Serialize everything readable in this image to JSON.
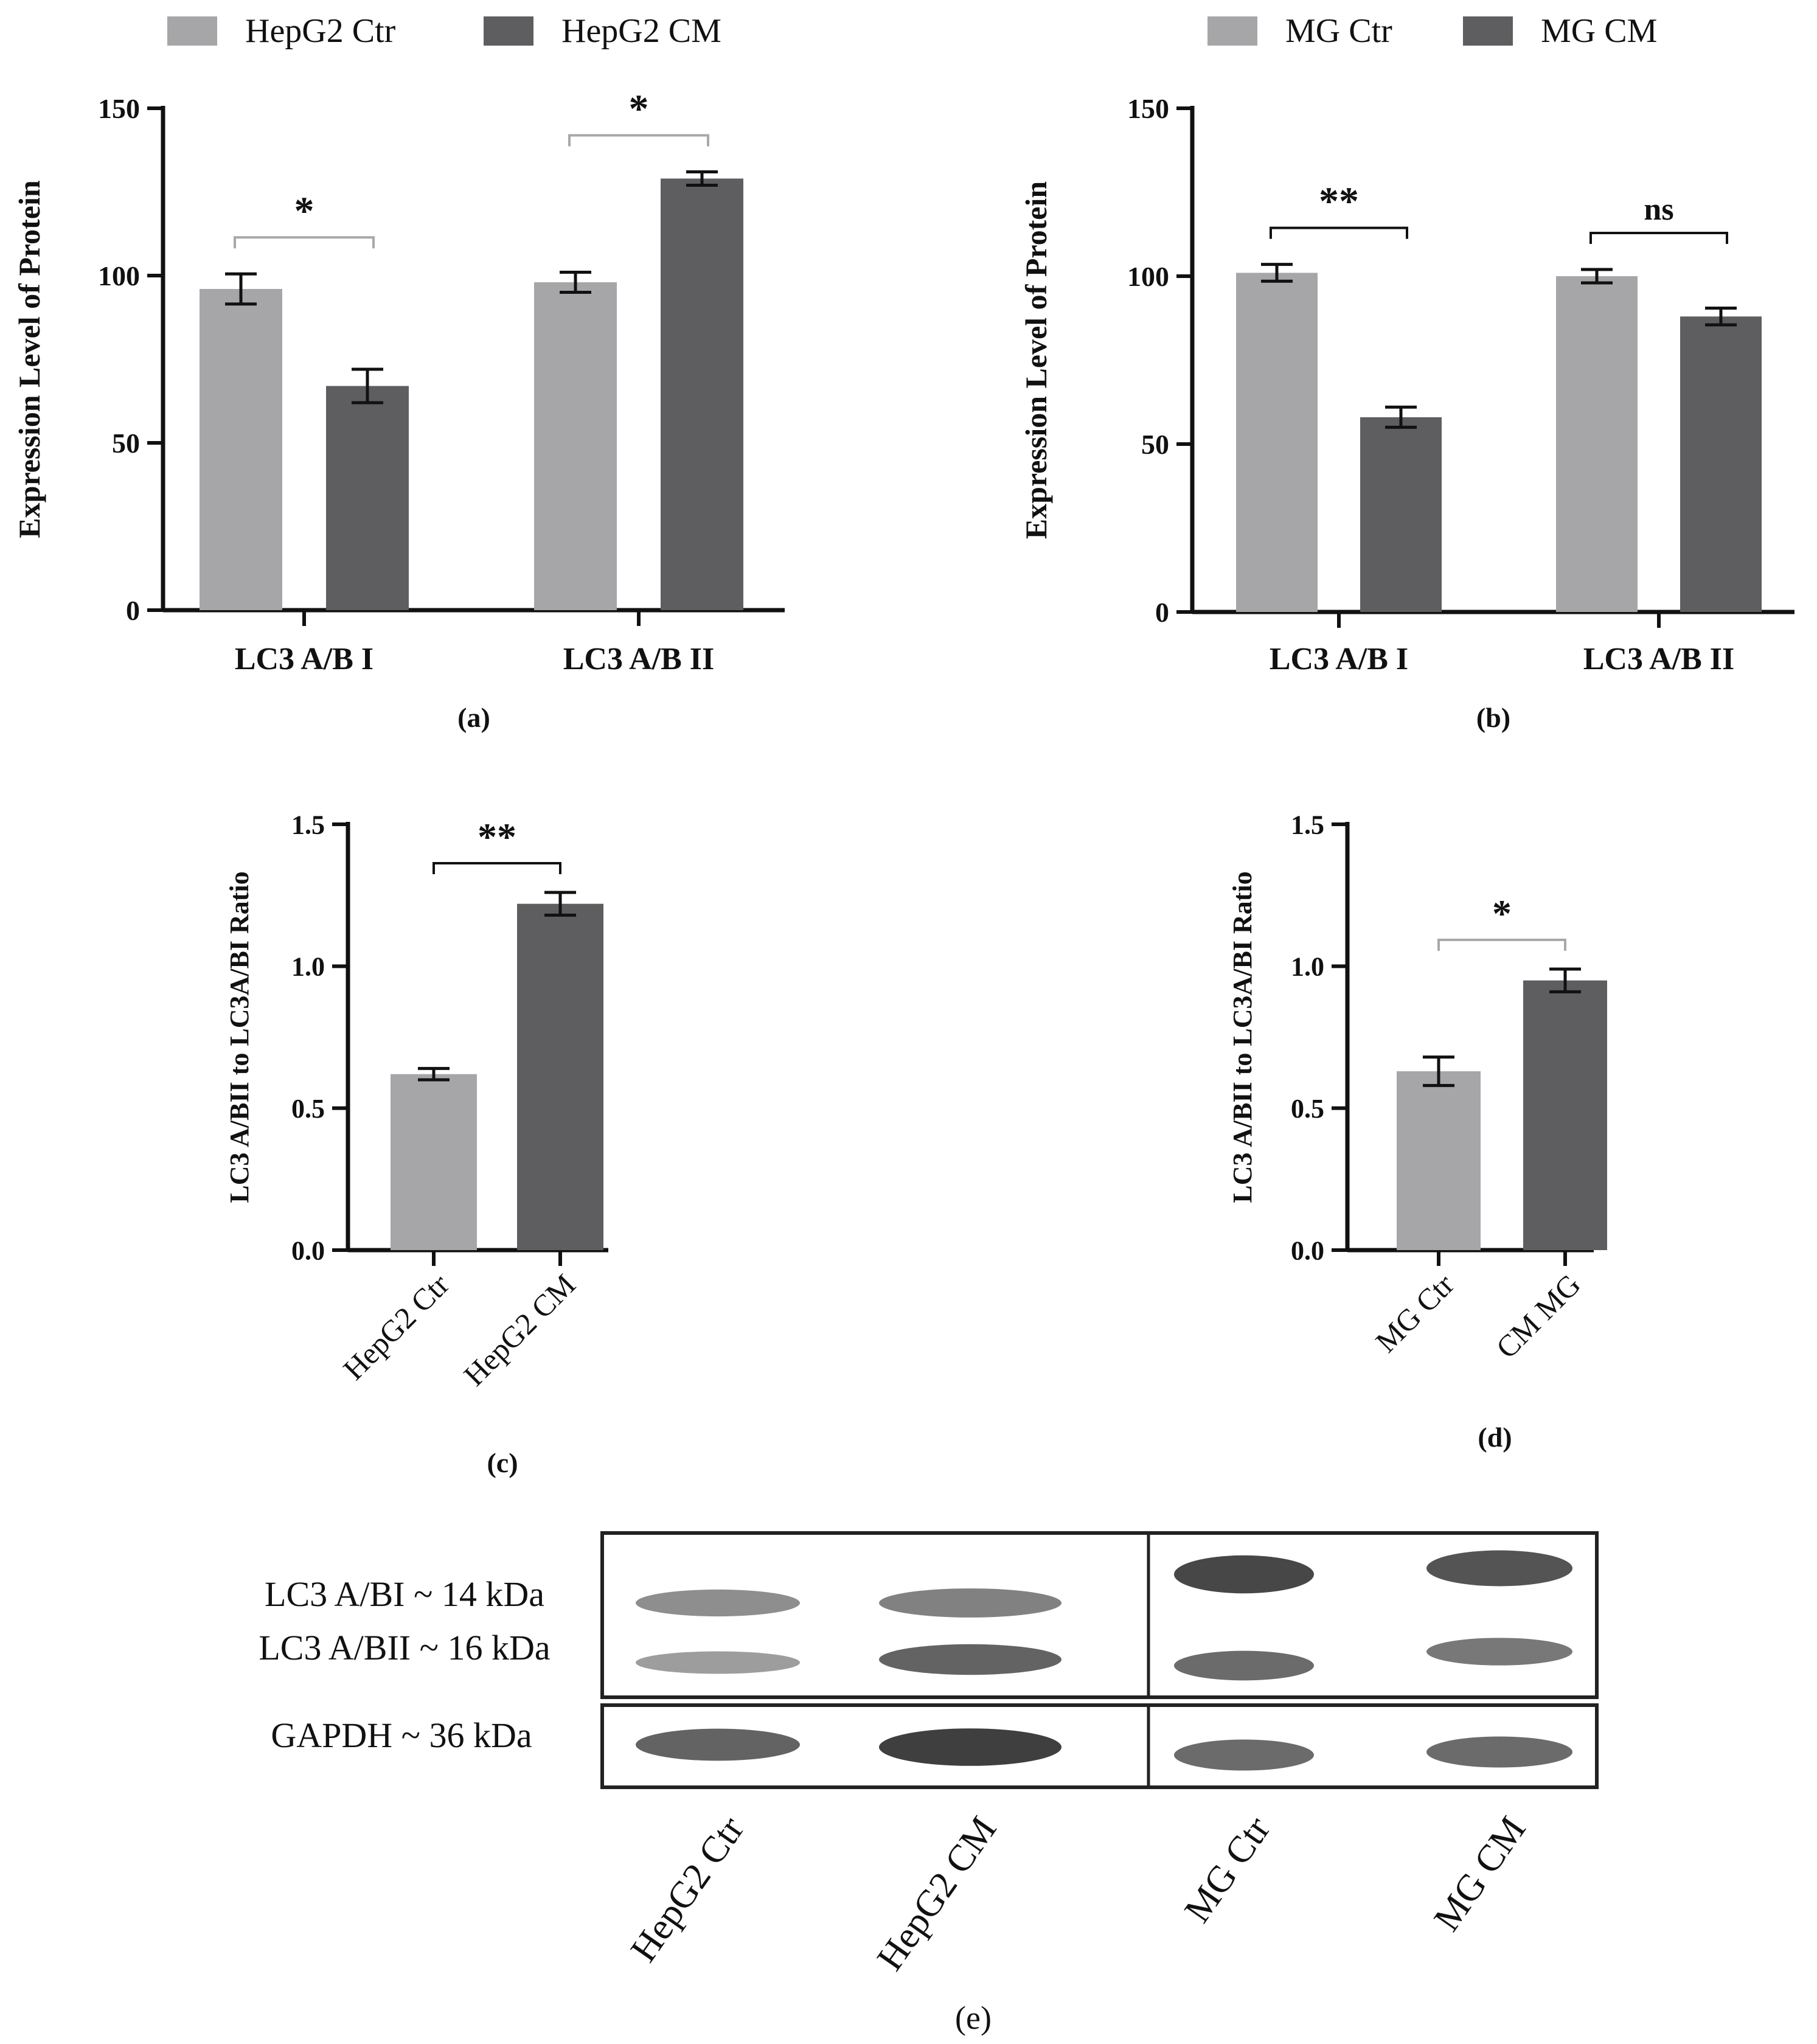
{
  "colors": {
    "ctr": "#a6a6a8",
    "cm": "#5e5e60",
    "bracket_dark": "#111111",
    "bracket_light": "#a8a8a8",
    "band": "#3f3f3f",
    "membrane": "#ededed"
  },
  "chart_data": [
    {
      "id": "a",
      "panel_label": "(a)",
      "type": "bar",
      "ylabel": "Expression Level of Protein",
      "categories": [
        "LC3 A/B I",
        "LC3 A/B II"
      ],
      "ylim": [
        0,
        150
      ],
      "yticks": [
        "0",
        "50",
        "100",
        "150"
      ],
      "series": [
        {
          "name": "HepG2 Ctr",
          "color_key": "ctr",
          "values": [
            96,
            98
          ],
          "errors": [
            4.5,
            3
          ]
        },
        {
          "name": "HepG2 CM",
          "color_key": "cm",
          "values": [
            67,
            129
          ],
          "errors": [
            5,
            2
          ]
        }
      ],
      "significance": [
        "*",
        "*"
      ],
      "legend": "top"
    },
    {
      "id": "b",
      "panel_label": "(b)",
      "type": "bar",
      "ylabel": "Expression Level of Protein",
      "categories": [
        "LC3 A/B I",
        "LC3 A/B II"
      ],
      "ylim": [
        0,
        150
      ],
      "yticks": [
        "0",
        "50",
        "100",
        "150"
      ],
      "series": [
        {
          "name": "MG Ctr",
          "color_key": "ctr",
          "values": [
            101,
            100
          ],
          "errors": [
            2.5,
            2
          ]
        },
        {
          "name": "MG CM",
          "color_key": "cm",
          "values": [
            58,
            88
          ],
          "errors": [
            3,
            2.5
          ]
        }
      ],
      "significance": [
        "**",
        "ns"
      ],
      "legend": "top"
    },
    {
      "id": "c",
      "panel_label": "(c)",
      "type": "bar",
      "ylabel": "LC3 A/BII to LC3A/BI Ratio",
      "categories": [
        "HepG2 Ctr",
        "HepG2 CM"
      ],
      "ylim": [
        0,
        1.5
      ],
      "yticks": [
        "0.0",
        "0.5",
        "1.0",
        "1.5"
      ],
      "values": [
        0.62,
        1.22
      ],
      "errors": [
        0.02,
        0.04
      ],
      "bar_color_keys": [
        "ctr",
        "cm"
      ],
      "significance": [
        "**"
      ]
    },
    {
      "id": "d",
      "panel_label": "(d)",
      "type": "bar",
      "ylabel": "LC3 A/BII to LC3A/BI Ratio",
      "categories": [
        "MG Ctr",
        "CM MG"
      ],
      "ylim": [
        0,
        1.5
      ],
      "yticks": [
        "0.0",
        "0.5",
        "1.0",
        "1.5"
      ],
      "values": [
        0.63,
        0.95
      ],
      "errors": [
        0.05,
        0.04
      ],
      "bar_color_keys": [
        "ctr",
        "cm"
      ],
      "significance": [
        "*"
      ]
    }
  ],
  "blot": {
    "panel_label": "(e)",
    "row_labels": [
      "LC3 A/BI ~ 14 kDa",
      "LC3 A/BII ~ 16 kDa",
      "GAPDH ~ 36 kDa"
    ],
    "lane_labels": [
      "HepG2 Ctr",
      "HepG2 CM",
      "MG Ctr",
      "MG CM"
    ],
    "band_intensity": {
      "LC3 A/BI": [
        0.45,
        0.55,
        0.95,
        0.85
      ],
      "LC3 A/BII": [
        0.35,
        0.75,
        0.7,
        0.6
      ],
      "GAPDH": [
        0.75,
        1.0,
        0.7,
        0.7
      ]
    }
  }
}
